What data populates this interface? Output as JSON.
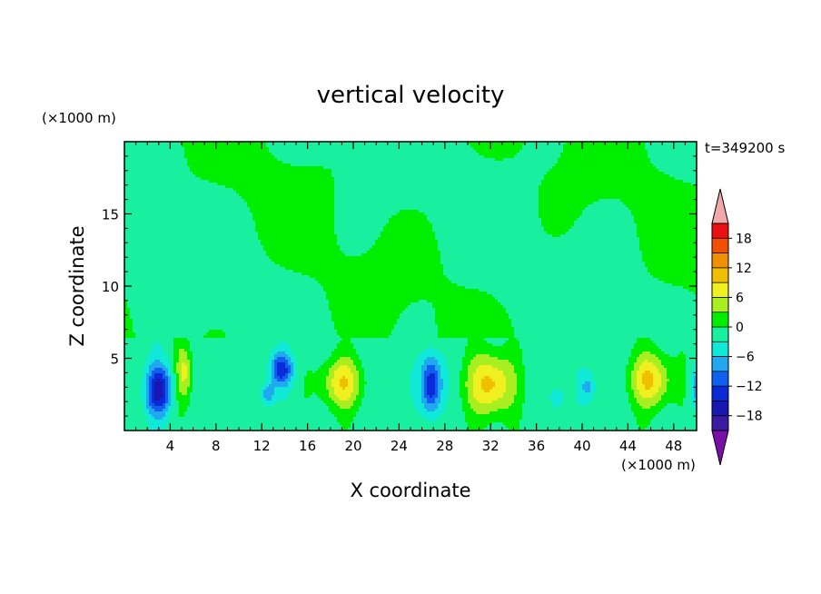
{
  "chart_data": {
    "type": "heatmap",
    "title": "vertical velocity",
    "xlabel": "X coordinate",
    "ylabel": "Z coordinate",
    "x_unit": "(×1000 m)",
    "y_unit": "(×1000 m)",
    "time_label": "t=349200 s",
    "xlim": [
      0,
      50
    ],
    "ylim": [
      0,
      20
    ],
    "x_ticks": [
      4,
      8,
      12,
      16,
      20,
      24,
      28,
      32,
      36,
      40,
      44,
      48
    ],
    "y_ticks": [
      5,
      10,
      15
    ],
    "colorbar": {
      "levels": [
        -21,
        -18,
        -15,
        -12,
        -9,
        -6,
        -3,
        0,
        3,
        6,
        9,
        12,
        15,
        18,
        21
      ],
      "tick_labels": [
        "18",
        "12",
        "6",
        "0",
        "−6",
        "−12",
        "−18"
      ],
      "tick_values": [
        18,
        12,
        6,
        0,
        -6,
        -12,
        -18
      ],
      "colors": [
        "#7a0ea8",
        "#3a1aa0",
        "#1818b0",
        "#0a2ad8",
        "#1060f0",
        "#20a8f0",
        "#10e8d8",
        "#18f0a0",
        "#00ee00",
        "#a8ee20",
        "#f0f020",
        "#f0c000",
        "#f09000",
        "#f05000",
        "#e81010",
        "#f0a8a8"
      ]
    },
    "features": [
      {
        "x": 3.0,
        "z": 2.8,
        "sx": 1.1,
        "sz": 1.7,
        "w": -15
      },
      {
        "x": 5.2,
        "z": 4.0,
        "sx": 0.7,
        "sz": 2.0,
        "w": 8
      },
      {
        "x": 13.7,
        "z": 4.2,
        "sx": 1.0,
        "sz": 1.1,
        "w": -12
      },
      {
        "x": 12.5,
        "z": 2.5,
        "sx": 0.6,
        "sz": 0.8,
        "w": -7
      },
      {
        "x": 19.0,
        "z": 3.3,
        "sx": 1.8,
        "sz": 1.8,
        "w": 10
      },
      {
        "x": 26.8,
        "z": 3.2,
        "sx": 0.9,
        "sz": 2.0,
        "w": -14
      },
      {
        "x": 32.0,
        "z": 3.2,
        "sx": 2.0,
        "sz": 2.2,
        "w": 12
      },
      {
        "x": 37.8,
        "z": 2.2,
        "sx": 0.6,
        "sz": 0.8,
        "w": -5
      },
      {
        "x": 40.5,
        "z": 3.0,
        "sx": 0.7,
        "sz": 1.0,
        "w": -5
      },
      {
        "x": 46.0,
        "z": 3.5,
        "sx": 1.8,
        "sz": 1.9,
        "w": 11
      },
      {
        "x": 50.0,
        "z": 3.0,
        "sx": 0.6,
        "sz": 1.5,
        "w": -6
      }
    ]
  }
}
